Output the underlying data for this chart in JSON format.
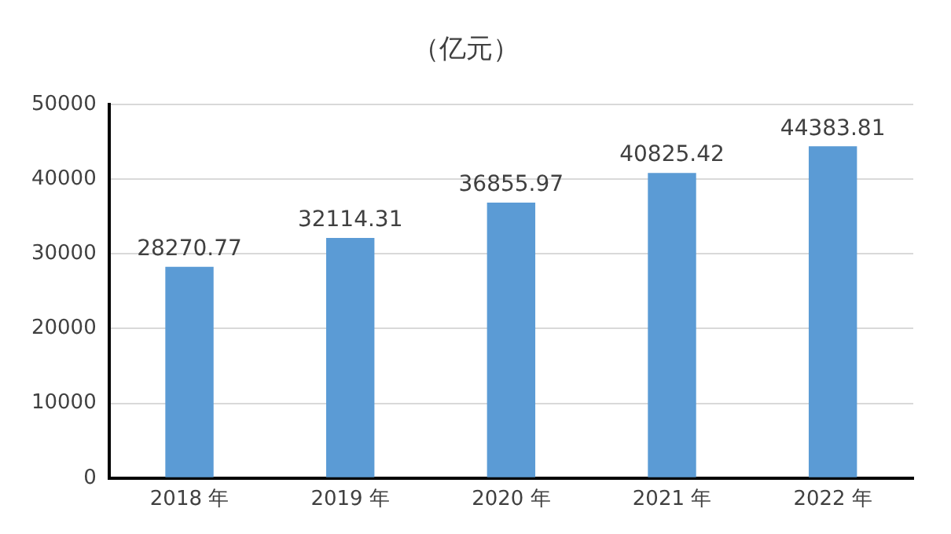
{
  "chart_data": {
    "type": "bar",
    "title": "（亿元）",
    "categories": [
      "2018 年",
      "2019 年",
      "2020 年",
      "2021 年",
      "2022 年"
    ],
    "values": [
      28270.77,
      32114.31,
      36855.97,
      40825.42,
      44383.81
    ],
    "color": "#5b9bd5",
    "ylim": [
      0,
      50000
    ],
    "yticks": [
      0,
      10000,
      20000,
      30000,
      40000,
      50000
    ],
    "grid": "y",
    "data_labels": true,
    "legend": false
  }
}
